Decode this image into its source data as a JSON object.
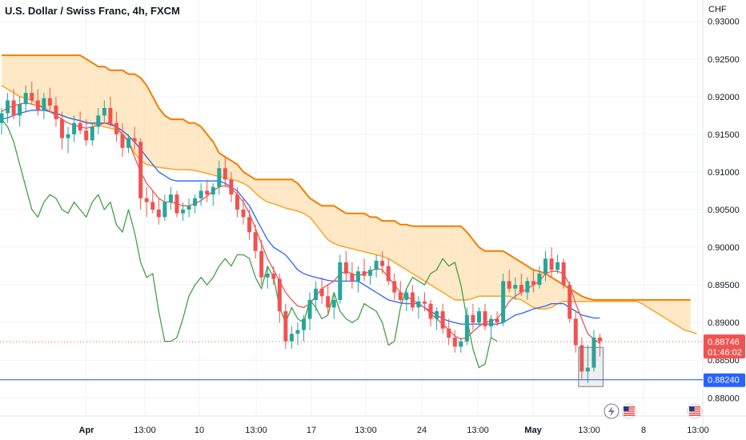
{
  "title": "U.S. Dollar / Swiss Franc, 4h, FXCM",
  "chart_data": {
    "type": "candlestick",
    "y_unit": "CHF",
    "ylim": [
      0.8795,
      0.9305
    ],
    "y_ticks": [
      "0.93000",
      "0.92500",
      "0.92000",
      "0.91500",
      "0.91000",
      "0.90500",
      "0.90000",
      "0.89500",
      "0.89000",
      "0.88500",
      "0.88000"
    ],
    "x_ticks": [
      {
        "label": "Apr",
        "bold": true
      },
      {
        "label": "13:00"
      },
      {
        "label": "10"
      },
      {
        "label": "13:00"
      },
      {
        "label": "17"
      },
      {
        "label": "13:00"
      },
      {
        "label": "24"
      },
      {
        "label": "13:00"
      },
      {
        "label": "May",
        "bold": true
      },
      {
        "label": "13:00"
      },
      {
        "label": "8"
      },
      {
        "label": "13:00"
      }
    ],
    "last_price": {
      "value": "0.88746",
      "countdown": "01:46:02",
      "color": "#ef5350"
    },
    "horizontal_line": {
      "value": "0.88240",
      "color": "#2962ff"
    },
    "colors": {
      "up": "#26a69a",
      "down": "#ef5350",
      "conversion": "#ef5350",
      "base": "#2962ff",
      "lagging": "#43a047",
      "span_a": "#f7a935",
      "span_b": "#f57c00",
      "cloud_bull": "#b2ebf2",
      "cloud_bear": "#ffe0b2"
    },
    "candles": [
      [
        0.9165,
        0.9185,
        0.915,
        0.9178
      ],
      [
        0.9178,
        0.9205,
        0.9165,
        0.9195
      ],
      [
        0.9195,
        0.921,
        0.917,
        0.9175
      ],
      [
        0.9175,
        0.92,
        0.916,
        0.919
      ],
      [
        0.919,
        0.9215,
        0.918,
        0.9205
      ],
      [
        0.9205,
        0.922,
        0.919,
        0.9195
      ],
      [
        0.9195,
        0.921,
        0.9175,
        0.9182
      ],
      [
        0.9182,
        0.9205,
        0.917,
        0.9198
      ],
      [
        0.9198,
        0.9212,
        0.918,
        0.9188
      ],
      [
        0.9188,
        0.92,
        0.916,
        0.917
      ],
      [
        0.917,
        0.918,
        0.913,
        0.9145
      ],
      [
        0.9145,
        0.916,
        0.9125,
        0.915
      ],
      [
        0.915,
        0.9175,
        0.914,
        0.9165
      ],
      [
        0.9165,
        0.918,
        0.915,
        0.9155
      ],
      [
        0.9155,
        0.917,
        0.9135,
        0.9142
      ],
      [
        0.9142,
        0.9165,
        0.9135,
        0.916
      ],
      [
        0.916,
        0.9185,
        0.915,
        0.9175
      ],
      [
        0.9175,
        0.9195,
        0.9165,
        0.9185
      ],
      [
        0.9185,
        0.92,
        0.916,
        0.9165
      ],
      [
        0.9165,
        0.918,
        0.914,
        0.915
      ],
      [
        0.915,
        0.9165,
        0.912,
        0.9132
      ],
      [
        0.9132,
        0.915,
        0.9125,
        0.9145
      ],
      [
        0.9145,
        0.916,
        0.913,
        0.914
      ],
      [
        0.914,
        0.9145,
        0.905,
        0.9065
      ],
      [
        0.9065,
        0.908,
        0.904,
        0.906
      ],
      [
        0.906,
        0.9075,
        0.9045,
        0.905
      ],
      [
        0.905,
        0.9065,
        0.903,
        0.904
      ],
      [
        0.904,
        0.907,
        0.9035,
        0.906
      ],
      [
        0.906,
        0.908,
        0.905,
        0.907
      ],
      [
        0.907,
        0.9075,
        0.904,
        0.9045
      ],
      [
        0.9045,
        0.906,
        0.9035,
        0.905
      ],
      [
        0.905,
        0.9065,
        0.904,
        0.9055
      ],
      [
        0.9055,
        0.907,
        0.9045,
        0.9065
      ],
      [
        0.9065,
        0.9085,
        0.9055,
        0.9075
      ],
      [
        0.9075,
        0.909,
        0.906,
        0.907
      ],
      [
        0.907,
        0.9085,
        0.9055,
        0.908
      ],
      [
        0.908,
        0.9115,
        0.907,
        0.9105
      ],
      [
        0.9105,
        0.912,
        0.908,
        0.909
      ],
      [
        0.909,
        0.91,
        0.906,
        0.907
      ],
      [
        0.907,
        0.908,
        0.904,
        0.905
      ],
      [
        0.905,
        0.9065,
        0.903,
        0.904
      ],
      [
        0.904,
        0.905,
        0.901,
        0.902
      ],
      [
        0.902,
        0.903,
        0.8985,
        0.8995
      ],
      [
        0.8995,
        0.901,
        0.895,
        0.896
      ],
      [
        0.896,
        0.8975,
        0.8945,
        0.8965
      ],
      [
        0.8965,
        0.8975,
        0.895,
        0.8958
      ],
      [
        0.8958,
        0.8965,
        0.89,
        0.8915
      ],
      [
        0.8915,
        0.8925,
        0.8865,
        0.8875
      ],
      [
        0.8875,
        0.8895,
        0.8865,
        0.8885
      ],
      [
        0.8885,
        0.89,
        0.887,
        0.889
      ],
      [
        0.889,
        0.891,
        0.8875,
        0.8905
      ],
      [
        0.8905,
        0.894,
        0.889,
        0.893
      ],
      [
        0.893,
        0.8955,
        0.8915,
        0.8945
      ],
      [
        0.8945,
        0.896,
        0.8925,
        0.8935
      ],
      [
        0.8935,
        0.895,
        0.891,
        0.892
      ],
      [
        0.892,
        0.894,
        0.8905,
        0.893
      ],
      [
        0.893,
        0.899,
        0.8925,
        0.898
      ],
      [
        0.898,
        0.8995,
        0.8955,
        0.8965
      ],
      [
        0.8965,
        0.898,
        0.8945,
        0.8955
      ],
      [
        0.8955,
        0.8975,
        0.894,
        0.8968
      ],
      [
        0.8968,
        0.8985,
        0.8955,
        0.8962
      ],
      [
        0.8962,
        0.8975,
        0.895,
        0.897
      ],
      [
        0.897,
        0.899,
        0.896,
        0.8982
      ],
      [
        0.8982,
        0.8995,
        0.8965,
        0.8975
      ],
      [
        0.8975,
        0.8985,
        0.895,
        0.8955
      ],
      [
        0.8955,
        0.8965,
        0.893,
        0.894
      ],
      [
        0.894,
        0.8955,
        0.8925,
        0.893
      ],
      [
        0.893,
        0.8945,
        0.8915,
        0.894
      ],
      [
        0.894,
        0.895,
        0.8915,
        0.892
      ],
      [
        0.892,
        0.8935,
        0.8905,
        0.8928
      ],
      [
        0.8928,
        0.894,
        0.8915,
        0.8925
      ],
      [
        0.8925,
        0.893,
        0.8895,
        0.8905
      ],
      [
        0.8905,
        0.892,
        0.889,
        0.8915
      ],
      [
        0.8915,
        0.8925,
        0.8885,
        0.8892
      ],
      [
        0.8892,
        0.8905,
        0.887,
        0.888
      ],
      [
        0.888,
        0.889,
        0.886,
        0.8868
      ],
      [
        0.8868,
        0.888,
        0.886,
        0.8875
      ],
      [
        0.8875,
        0.892,
        0.887,
        0.891
      ],
      [
        0.891,
        0.8925,
        0.889,
        0.89
      ],
      [
        0.89,
        0.892,
        0.8895,
        0.8915
      ],
      [
        0.8915,
        0.8925,
        0.889,
        0.8895
      ],
      [
        0.8895,
        0.891,
        0.888,
        0.8905
      ],
      [
        0.8905,
        0.8915,
        0.8895,
        0.89
      ],
      [
        0.89,
        0.8965,
        0.8895,
        0.8955
      ],
      [
        0.8955,
        0.897,
        0.894,
        0.8945
      ],
      [
        0.8945,
        0.896,
        0.893,
        0.895
      ],
      [
        0.895,
        0.8965,
        0.8935,
        0.894
      ],
      [
        0.894,
        0.896,
        0.893,
        0.8955
      ],
      [
        0.8955,
        0.897,
        0.894,
        0.895
      ],
      [
        0.895,
        0.8975,
        0.8945,
        0.8965
      ],
      [
        0.8965,
        0.8995,
        0.8955,
        0.8985
      ],
      [
        0.8985,
        0.9,
        0.896,
        0.897
      ],
      [
        0.897,
        0.899,
        0.8965,
        0.898
      ],
      [
        0.898,
        0.8985,
        0.8945,
        0.895
      ],
      [
        0.895,
        0.8955,
        0.89,
        0.8905
      ],
      [
        0.8905,
        0.8915,
        0.886,
        0.887
      ],
      [
        0.887,
        0.888,
        0.8825,
        0.8835
      ],
      [
        0.8835,
        0.887,
        0.882,
        0.884
      ],
      [
        0.884,
        0.889,
        0.8835,
        0.888
      ],
      [
        0.888,
        0.8885,
        0.8855,
        0.8875
      ]
    ],
    "conversion_line": [
      0.918,
      0.9185,
      0.9188,
      0.919,
      0.9192,
      0.919,
      0.9188,
      0.9185,
      0.918,
      0.9175,
      0.917,
      0.9165,
      0.9162,
      0.916,
      0.9158,
      0.916,
      0.9162,
      0.9165,
      0.9165,
      0.916,
      0.915,
      0.914,
      0.912,
      0.91,
      0.9085,
      0.9075,
      0.9065,
      0.906,
      0.906,
      0.9058,
      0.9055,
      0.9055,
      0.9058,
      0.9062,
      0.9068,
      0.9075,
      0.908,
      0.9082,
      0.9078,
      0.907,
      0.906,
      0.9045,
      0.9025,
      0.9005,
      0.8985,
      0.897,
      0.8955,
      0.894,
      0.893,
      0.8922,
      0.892,
      0.8925,
      0.8935,
      0.8945,
      0.895,
      0.8955,
      0.8965,
      0.8968,
      0.8965,
      0.8962,
      0.8965,
      0.8968,
      0.8972,
      0.897,
      0.896,
      0.895,
      0.894,
      0.8935,
      0.893,
      0.8925,
      0.892,
      0.8912,
      0.8905,
      0.8898,
      0.889,
      0.8882,
      0.8878,
      0.888,
      0.8888,
      0.8895,
      0.89,
      0.8902,
      0.8905,
      0.8915,
      0.8928,
      0.8935,
      0.894,
      0.8945,
      0.895,
      0.8955,
      0.8965,
      0.8968,
      0.8968,
      0.8965,
      0.895,
      0.8925,
      0.8905,
      0.8885,
      0.8878,
      0.8872
    ],
    "base_line": [
      0.917,
      0.9172,
      0.9175,
      0.9178,
      0.918,
      0.9182,
      0.9182,
      0.9182,
      0.918,
      0.9178,
      0.9175,
      0.9172,
      0.917,
      0.9168,
      0.9165,
      0.9165,
      0.9165,
      0.9165,
      0.9163,
      0.916,
      0.9155,
      0.9148,
      0.914,
      0.913,
      0.912,
      0.911,
      0.91,
      0.9095,
      0.909,
      0.9088,
      0.9088,
      0.9088,
      0.9088,
      0.9088,
      0.9088,
      0.9088,
      0.9088,
      0.9085,
      0.908,
      0.9075,
      0.9065,
      0.9055,
      0.904,
      0.9025,
      0.901,
      0.9,
      0.8995,
      0.899,
      0.898,
      0.897,
      0.8965,
      0.8962,
      0.896,
      0.8958,
      0.8956,
      0.8955,
      0.8955,
      0.8955,
      0.8955,
      0.8955,
      0.895,
      0.8945,
      0.894,
      0.8935,
      0.893,
      0.8928,
      0.8926,
      0.8925,
      0.8925,
      0.8925,
      0.892,
      0.8915,
      0.891,
      0.8905,
      0.8902,
      0.89,
      0.8898,
      0.8898,
      0.8898,
      0.8898,
      0.8898,
      0.8898,
      0.8898,
      0.89,
      0.8905,
      0.891,
      0.8912,
      0.8915,
      0.8918,
      0.892,
      0.8922,
      0.8925,
      0.8925,
      0.8925,
      0.892,
      0.8915,
      0.891,
      0.8908,
      0.8906,
      0.8906
    ],
    "lagging_span": [
      0.917,
      0.916,
      0.914,
      0.911,
      0.908,
      0.905,
      0.904,
      0.906,
      0.907,
      0.9065,
      0.905,
      0.9045,
      0.906,
      0.905,
      0.904,
      0.906,
      0.907,
      0.905,
      0.906,
      0.903,
      0.902,
      0.905,
      0.902,
      0.898,
      0.896,
      0.8965,
      0.8915,
      0.8875,
      0.8875,
      0.888,
      0.8905,
      0.8935,
      0.895,
      0.896,
      0.895,
      0.896,
      0.8975,
      0.8985,
      0.8975,
      0.899,
      0.899,
      0.8985,
      0.896,
      0.8945,
      0.8975,
      0.896,
      0.892,
      0.89,
      0.892,
      0.8905,
      0.89,
      0.893,
      0.892,
      0.8905,
      0.891,
      0.894,
      0.8915,
      0.8905,
      0.89,
      0.8905,
      0.8925,
      0.892,
      0.8915,
      0.89,
      0.887,
      0.8875,
      0.892,
      0.8945,
      0.896,
      0.8955,
      0.895,
      0.8965,
      0.897,
      0.8985,
      0.8975,
      0.898,
      0.895,
      0.8905,
      0.8865,
      0.884,
      0.8845,
      0.888,
      0.8875
    ],
    "senkou_a": [
      0.9215,
      0.921,
      0.9205,
      0.92,
      0.9198,
      0.9195,
      0.919,
      0.9185,
      0.918,
      0.9178,
      0.9175,
      0.9172,
      0.917,
      0.9168,
      0.9166,
      0.9164,
      0.9162,
      0.916,
      0.9158,
      0.9156,
      0.915,
      0.914,
      0.9125,
      0.9115,
      0.911,
      0.9108,
      0.9106,
      0.9105,
      0.9104,
      0.9103,
      0.9103,
      0.9103,
      0.9102,
      0.91,
      0.9098,
      0.9096,
      0.9094,
      0.9092,
      0.909,
      0.9088,
      0.9085,
      0.908,
      0.9072,
      0.9065,
      0.906,
      0.9058,
      0.9055,
      0.9052,
      0.905,
      0.9048,
      0.9045,
      0.904,
      0.903,
      0.902,
      0.901,
      0.9005,
      0.9002,
      0.9,
      0.8998,
      0.8996,
      0.8994,
      0.8992,
      0.899,
      0.8988,
      0.8985,
      0.898,
      0.8975,
      0.897,
      0.8965,
      0.896,
      0.8955,
      0.895,
      0.8945,
      0.894,
      0.8935,
      0.893,
      0.893,
      0.893,
      0.8932,
      0.8935,
      0.8935,
      0.8935,
      0.8935,
      0.8935,
      0.8935,
      0.8932,
      0.893,
      0.8925,
      0.892,
      0.8918,
      0.8918,
      0.892,
      0.8925,
      0.8928,
      0.8928,
      0.8928,
      0.8928,
      0.8928,
      0.8928,
      0.8928,
      0.8928,
      0.8928,
      0.8928,
      0.8928,
      0.8928,
      0.8928,
      0.8925,
      0.892,
      0.8915,
      0.891,
      0.8905,
      0.89,
      0.8895,
      0.889,
      0.8888,
      0.8885
    ],
    "senkou_b": [
      0.9255,
      0.9255,
      0.9255,
      0.9255,
      0.9255,
      0.9255,
      0.9255,
      0.9255,
      0.9255,
      0.9255,
      0.9255,
      0.9255,
      0.9255,
      0.9255,
      0.925,
      0.9245,
      0.924,
      0.924,
      0.9235,
      0.9235,
      0.9235,
      0.923,
      0.923,
      0.9225,
      0.9215,
      0.92,
      0.9185,
      0.9175,
      0.917,
      0.917,
      0.917,
      0.9165,
      0.9165,
      0.916,
      0.915,
      0.914,
      0.9125,
      0.912,
      0.9115,
      0.911,
      0.91,
      0.9095,
      0.909,
      0.909,
      0.909,
      0.909,
      0.909,
      0.909,
      0.909,
      0.9085,
      0.9075,
      0.9065,
      0.906,
      0.9055,
      0.9055,
      0.9055,
      0.905,
      0.9045,
      0.9045,
      0.9045,
      0.9045,
      0.904,
      0.904,
      0.9035,
      0.9035,
      0.9035,
      0.903,
      0.903,
      0.9028,
      0.9028,
      0.9028,
      0.9028,
      0.9028,
      0.9028,
      0.9028,
      0.9028,
      0.9028,
      0.902,
      0.901,
      0.9,
      0.8995,
      0.8995,
      0.8995,
      0.8995,
      0.899,
      0.8985,
      0.898,
      0.8975,
      0.897,
      0.8968,
      0.8965,
      0.896,
      0.8955,
      0.895,
      0.8945,
      0.894,
      0.8935,
      0.8932,
      0.893,
      0.893,
      0.893,
      0.893,
      0.893,
      0.893,
      0.893,
      0.893,
      0.893,
      0.893,
      0.893,
      0.893,
      0.893,
      0.893,
      0.893,
      0.893,
      0.893
    ]
  }
}
